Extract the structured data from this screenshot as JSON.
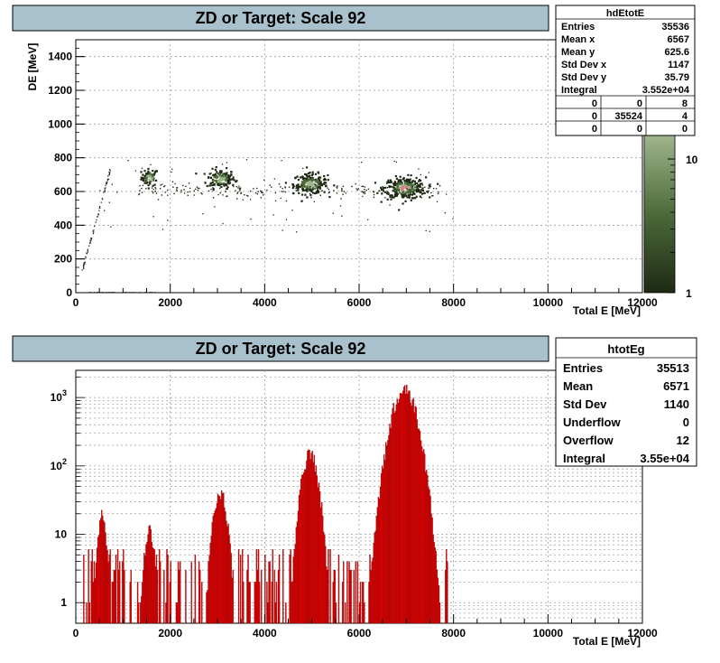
{
  "chart_data": [
    {
      "type": "heatmap",
      "title": "ZD or Target: Scale 92",
      "xlabel": "Total E [MeV]",
      "ylabel": "DE [MeV]",
      "xlim": [
        0,
        12000
      ],
      "ylim": [
        0,
        1500
      ],
      "x_ticks": [
        "0",
        "2000",
        "4000",
        "6000",
        "8000",
        "10000",
        "12000"
      ],
      "y_ticks": [
        "0",
        "200",
        "400",
        "600",
        "800",
        "1000",
        "1200",
        "1400"
      ],
      "grid": true,
      "colorbar": {
        "scale": "log",
        "ticks": [
          "1",
          "10"
        ],
        "colors": [
          "#1e2a14",
          "#9fb58c"
        ]
      },
      "clusters": [
        {
          "x": 1550,
          "y": 690,
          "sx": 90,
          "sy": 25,
          "n": 60
        },
        {
          "x": 3050,
          "y": 680,
          "sx": 150,
          "sy": 28,
          "n": 140
        },
        {
          "x": 4950,
          "y": 650,
          "sx": 180,
          "sy": 30,
          "n": 200
        },
        {
          "x": 6950,
          "y": 625,
          "sx": 220,
          "sy": 32,
          "n": 280
        }
      ],
      "stats": {
        "name": "hdEtotE",
        "rows": [
          {
            "label": "Entries",
            "value": "35536"
          },
          {
            "label": "Mean x",
            "value": "6567"
          },
          {
            "label": "Mean y",
            "value": "625.6"
          },
          {
            "label": "Std Dev x",
            "value": "1147"
          },
          {
            "label": "Std Dev y",
            "value": "35.79"
          },
          {
            "label": "Integral",
            "value": "3.552e+04"
          }
        ],
        "grid": [
          [
            "0",
            "0",
            "8"
          ],
          [
            "0",
            "35524",
            "4"
          ],
          [
            "0",
            "0",
            "0"
          ]
        ]
      }
    },
    {
      "type": "bar",
      "title": "ZD or Target: Scale 92",
      "xlabel": "Total E [MeV]",
      "ylabel": "",
      "xlim": [
        0,
        12000
      ],
      "ylim": [
        0.5,
        2500
      ],
      "yscale": "log",
      "x_ticks": [
        "0",
        "2000",
        "4000",
        "6000",
        "8000",
        "10000",
        "12000"
      ],
      "y_ticks": [
        "1",
        "10",
        "10^2",
        "10^3"
      ],
      "grid": true,
      "fill_color": "#ff0000",
      "peaks": [
        {
          "center": 550,
          "height": 20,
          "width": 70
        },
        {
          "center": 1550,
          "height": 11,
          "width": 80
        },
        {
          "center": 3050,
          "height": 40,
          "width": 110
        },
        {
          "center": 4950,
          "height": 150,
          "width": 130
        },
        {
          "center": 6950,
          "height": 1300,
          "width": 200
        }
      ],
      "stats": {
        "name": "htotEg",
        "rows": [
          {
            "label": "Entries",
            "value": "35513"
          },
          {
            "label": "Mean",
            "value": "6571"
          },
          {
            "label": "Std Dev",
            "value": "1140"
          },
          {
            "label": "Underflow",
            "value": "0"
          },
          {
            "label": "Overflow",
            "value": "12"
          },
          {
            "label": "Integral",
            "value": "3.55e+04"
          }
        ]
      }
    }
  ]
}
